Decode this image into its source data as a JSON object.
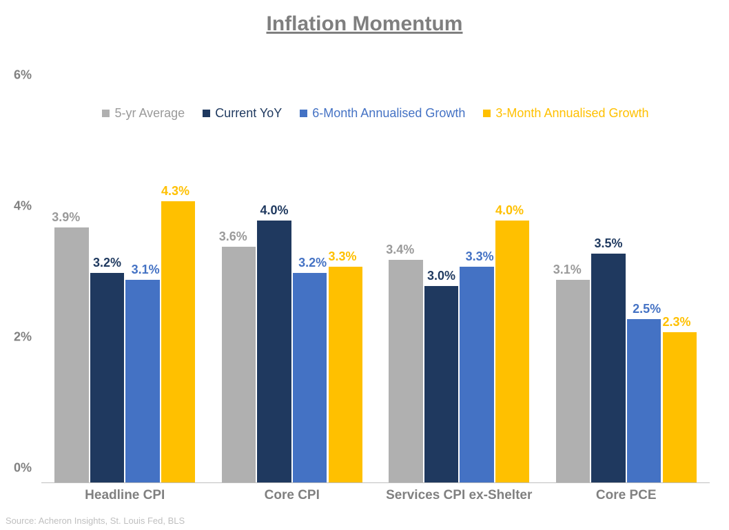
{
  "title": "Inflation Momentum",
  "source_text": "Source: Acheron Insights, St. Louis Fed, BLS",
  "background_color": "#ffffff",
  "title_color": "#7f7f7f",
  "axis_label_color": "#808080",
  "axis_line_color": "#bfbfbf",
  "source_color": "#bfbfbf",
  "title_fontsize": 30,
  "axis_fontsize": 18,
  "legend_fontsize": 18,
  "datalabel_fontsize": 18,
  "category_fontsize": 19,
  "y_axis": {
    "min": 0,
    "max": 6,
    "tick_step": 2,
    "suffix": "%",
    "ticks": [
      "0%",
      "2%",
      "4%",
      "6%"
    ]
  },
  "series": [
    {
      "name": "5-yr Average",
      "color": "#b0b0b0",
      "label_color": "#9a9a9a",
      "label_shift": -70
    },
    {
      "name": "Current YoY",
      "color": "#1f395f",
      "label_color": "#1f395f",
      "label_shift": -50
    },
    {
      "name": "6-Month Annualised Growth",
      "color": "#4472c4",
      "label_color": "#4472c4",
      "label_shift": -40
    },
    {
      "name": "3-Month Annualised Growth",
      "color": "#ffc000",
      "label_color": "#ffc000",
      "label_shift": -60
    }
  ],
  "categories": [
    "Headline CPI",
    "Core CPI",
    "Services CPI ex-Shelter",
    "Core PCE"
  ],
  "data": [
    {
      "values": [
        3.9,
        3.2,
        3.1,
        4.3
      ],
      "labels": [
        "3.9%",
        "3.2%",
        "3.1%",
        "4.3%"
      ]
    },
    {
      "values": [
        3.6,
        4.0,
        3.2,
        3.3
      ],
      "labels": [
        "3.6%",
        "4.0%",
        "3.2%",
        "3.3%"
      ]
    },
    {
      "values": [
        3.4,
        3.0,
        3.3,
        4.0
      ],
      "labels": [
        "3.4%",
        "3.0%",
        "3.3%",
        "4.0%"
      ]
    },
    {
      "values": [
        3.1,
        3.5,
        2.5,
        2.3
      ],
      "labels": [
        "3.1%",
        "3.5%",
        "2.5%",
        "2.3%"
      ]
    }
  ],
  "type": "grouped-bar",
  "bar_gap_percent": 1.2,
  "group_side_padding_percent": 8
}
